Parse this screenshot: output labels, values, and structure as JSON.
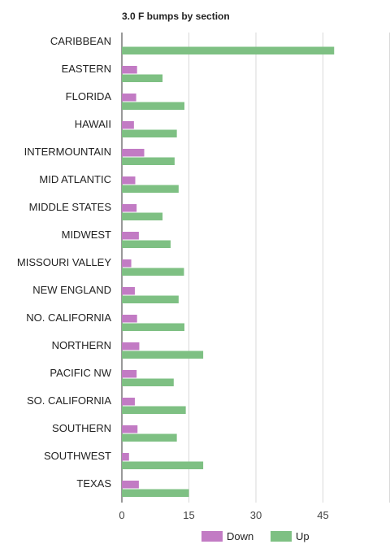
{
  "chart_data": {
    "type": "bar",
    "orientation": "horizontal",
    "title": "3.0 F bumps by section",
    "xlabel": "",
    "ylabel": "",
    "xlim": [
      0,
      60
    ],
    "xticks": [
      0,
      15,
      30,
      45
    ],
    "grid": true,
    "legend_position": "bottom",
    "categories": [
      "CARIBBEAN",
      "EASTERN",
      "FLORIDA",
      "HAWAII",
      "INTERMOUNTAIN",
      "MID ATLANTIC",
      "MIDDLE STATES",
      "MIDWEST",
      "MISSOURI VALLEY",
      "NEW ENGLAND",
      "NO. CALIFORNIA",
      "NORTHERN",
      "PACIFIC NW",
      "SO. CALIFORNIA",
      "SOUTHERN",
      "SOUTHWEST",
      "TEXAS"
    ],
    "series": [
      {
        "name": "Down",
        "color": "#c27bc4",
        "values": [
          0,
          3.4,
          3.2,
          2.7,
          5.0,
          3.0,
          3.3,
          3.8,
          2.1,
          2.9,
          3.4,
          3.9,
          3.3,
          2.9,
          3.5,
          1.6,
          3.8
        ]
      },
      {
        "name": "Up",
        "color": "#7ec083",
        "values": [
          47.5,
          9.1,
          14.0,
          12.3,
          11.8,
          12.7,
          9.1,
          10.9,
          13.9,
          12.7,
          14.0,
          18.2,
          11.6,
          14.3,
          12.3,
          18.2,
          15.0
        ]
      }
    ]
  }
}
